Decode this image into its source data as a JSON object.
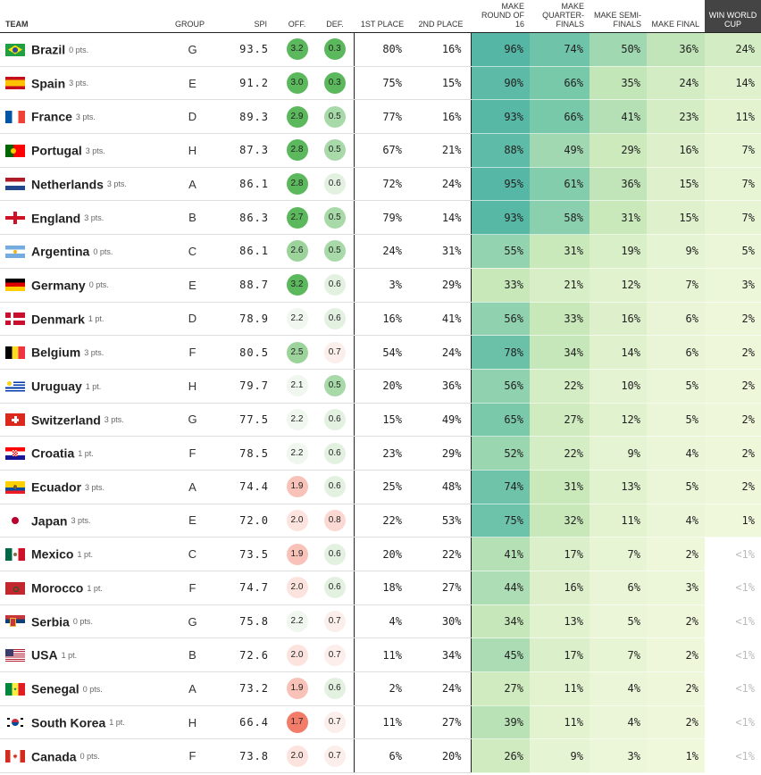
{
  "headers": {
    "team": "TEAM",
    "group": "GROUP",
    "spi": "SPI",
    "off": "OFF.",
    "def": "DEF.",
    "first": "1ST PLACE",
    "second": "2ND PLACE",
    "r16": "MAKE ROUND OF 16",
    "qf": "MAKE QUARTER-FINALS",
    "sf": "MAKE SEMI-FINALS",
    "final": "MAKE FINAL",
    "win": "WIN WORLD CUP"
  },
  "colors": {
    "header_dark": "#444444",
    "off_high": "#4caf50",
    "off_low": "#f08070",
    "def_good": "#4caf50"
  },
  "teams": [
    {
      "name": "Brazil",
      "pts": "0 pts.",
      "group": "G",
      "spi": "93.5",
      "off": "3.2",
      "def": "0.3",
      "first": "80%",
      "second": "16%",
      "r16": "96%",
      "qf": "74%",
      "sf": "50%",
      "final": "36%",
      "win": "24%",
      "flag": "brazil"
    },
    {
      "name": "Spain",
      "pts": "3 pts.",
      "group": "E",
      "spi": "91.2",
      "off": "3.0",
      "def": "0.3",
      "first": "75%",
      "second": "15%",
      "r16": "90%",
      "qf": "66%",
      "sf": "35%",
      "final": "24%",
      "win": "14%",
      "flag": "spain"
    },
    {
      "name": "France",
      "pts": "3 pts.",
      "group": "D",
      "spi": "89.3",
      "off": "2.9",
      "def": "0.5",
      "first": "77%",
      "second": "16%",
      "r16": "93%",
      "qf": "66%",
      "sf": "41%",
      "final": "23%",
      "win": "11%",
      "flag": "france"
    },
    {
      "name": "Portugal",
      "pts": "3 pts.",
      "group": "H",
      "spi": "87.3",
      "off": "2.8",
      "def": "0.5",
      "first": "67%",
      "second": "21%",
      "r16": "88%",
      "qf": "49%",
      "sf": "29%",
      "final": "16%",
      "win": "7%",
      "flag": "portugal"
    },
    {
      "name": "Netherlands",
      "pts": "3 pts.",
      "group": "A",
      "spi": "86.1",
      "off": "2.8",
      "def": "0.6",
      "first": "72%",
      "second": "24%",
      "r16": "95%",
      "qf": "61%",
      "sf": "36%",
      "final": "15%",
      "win": "7%",
      "flag": "netherlands"
    },
    {
      "name": "England",
      "pts": "3 pts.",
      "group": "B",
      "spi": "86.3",
      "off": "2.7",
      "def": "0.5",
      "first": "79%",
      "second": "14%",
      "r16": "93%",
      "qf": "58%",
      "sf": "31%",
      "final": "15%",
      "win": "7%",
      "flag": "england"
    },
    {
      "name": "Argentina",
      "pts": "0 pts.",
      "group": "C",
      "spi": "86.1",
      "off": "2.6",
      "def": "0.5",
      "first": "24%",
      "second": "31%",
      "r16": "55%",
      "qf": "31%",
      "sf": "19%",
      "final": "9%",
      "win": "5%",
      "flag": "argentina"
    },
    {
      "name": "Germany",
      "pts": "0 pts.",
      "group": "E",
      "spi": "88.7",
      "off": "3.2",
      "def": "0.6",
      "first": "3%",
      "second": "29%",
      "r16": "33%",
      "qf": "21%",
      "sf": "12%",
      "final": "7%",
      "win": "3%",
      "flag": "germany"
    },
    {
      "name": "Denmark",
      "pts": "1 pt.",
      "group": "D",
      "spi": "78.9",
      "off": "2.2",
      "def": "0.6",
      "first": "16%",
      "second": "41%",
      "r16": "56%",
      "qf": "33%",
      "sf": "16%",
      "final": "6%",
      "win": "2%",
      "flag": "denmark"
    },
    {
      "name": "Belgium",
      "pts": "3 pts.",
      "group": "F",
      "spi": "80.5",
      "off": "2.5",
      "def": "0.7",
      "first": "54%",
      "second": "24%",
      "r16": "78%",
      "qf": "34%",
      "sf": "14%",
      "final": "6%",
      "win": "2%",
      "flag": "belgium"
    },
    {
      "name": "Uruguay",
      "pts": "1 pt.",
      "group": "H",
      "spi": "79.7",
      "off": "2.1",
      "def": "0.5",
      "first": "20%",
      "second": "36%",
      "r16": "56%",
      "qf": "22%",
      "sf": "10%",
      "final": "5%",
      "win": "2%",
      "flag": "uruguay"
    },
    {
      "name": "Switzerland",
      "pts": "3 pts.",
      "group": "G",
      "spi": "77.5",
      "off": "2.2",
      "def": "0.6",
      "first": "15%",
      "second": "49%",
      "r16": "65%",
      "qf": "27%",
      "sf": "12%",
      "final": "5%",
      "win": "2%",
      "flag": "switzerland"
    },
    {
      "name": "Croatia",
      "pts": "1 pt.",
      "group": "F",
      "spi": "78.5",
      "off": "2.2",
      "def": "0.6",
      "first": "23%",
      "second": "29%",
      "r16": "52%",
      "qf": "22%",
      "sf": "9%",
      "final": "4%",
      "win": "2%",
      "flag": "croatia"
    },
    {
      "name": "Ecuador",
      "pts": "3 pts.",
      "group": "A",
      "spi": "74.4",
      "off": "1.9",
      "def": "0.6",
      "first": "25%",
      "second": "48%",
      "r16": "74%",
      "qf": "31%",
      "sf": "13%",
      "final": "5%",
      "win": "2%",
      "flag": "ecuador"
    },
    {
      "name": "Japan",
      "pts": "3 pts.",
      "group": "E",
      "spi": "72.0",
      "off": "2.0",
      "def": "0.8",
      "first": "22%",
      "second": "53%",
      "r16": "75%",
      "qf": "32%",
      "sf": "11%",
      "final": "4%",
      "win": "1%",
      "flag": "japan"
    },
    {
      "name": "Mexico",
      "pts": "1 pt.",
      "group": "C",
      "spi": "73.5",
      "off": "1.9",
      "def": "0.6",
      "first": "20%",
      "second": "22%",
      "r16": "41%",
      "qf": "17%",
      "sf": "7%",
      "final": "2%",
      "win": "<1%",
      "flag": "mexico"
    },
    {
      "name": "Morocco",
      "pts": "1 pt.",
      "group": "F",
      "spi": "74.7",
      "off": "2.0",
      "def": "0.6",
      "first": "18%",
      "second": "27%",
      "r16": "44%",
      "qf": "16%",
      "sf": "6%",
      "final": "3%",
      "win": "<1%",
      "flag": "morocco"
    },
    {
      "name": "Serbia",
      "pts": "0 pts.",
      "group": "G",
      "spi": "75.8",
      "off": "2.2",
      "def": "0.7",
      "first": "4%",
      "second": "30%",
      "r16": "34%",
      "qf": "13%",
      "sf": "5%",
      "final": "2%",
      "win": "<1%",
      "flag": "serbia"
    },
    {
      "name": "USA",
      "pts": "1 pt.",
      "group": "B",
      "spi": "72.6",
      "off": "2.0",
      "def": "0.7",
      "first": "11%",
      "second": "34%",
      "r16": "45%",
      "qf": "17%",
      "sf": "7%",
      "final": "2%",
      "win": "<1%",
      "flag": "usa"
    },
    {
      "name": "Senegal",
      "pts": "0 pts.",
      "group": "A",
      "spi": "73.2",
      "off": "1.9",
      "def": "0.6",
      "first": "2%",
      "second": "24%",
      "r16": "27%",
      "qf": "11%",
      "sf": "4%",
      "final": "2%",
      "win": "<1%",
      "flag": "senegal"
    },
    {
      "name": "South Korea",
      "pts": "1 pt.",
      "group": "H",
      "spi": "66.4",
      "off": "1.7",
      "def": "0.7",
      "first": "11%",
      "second": "27%",
      "r16": "39%",
      "qf": "11%",
      "sf": "4%",
      "final": "2%",
      "win": "<1%",
      "flag": "south-korea"
    },
    {
      "name": "Canada",
      "pts": "0 pts.",
      "group": "F",
      "spi": "73.8",
      "off": "2.0",
      "def": "0.7",
      "first": "6%",
      "second": "20%",
      "r16": "26%",
      "qf": "9%",
      "sf": "3%",
      "final": "1%",
      "win": "<1%",
      "flag": "canada"
    }
  ]
}
